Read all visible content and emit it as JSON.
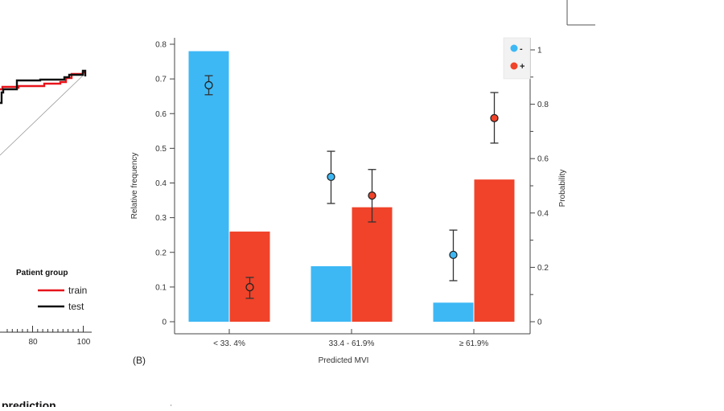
{
  "chart_data": [
    {
      "type": "bar",
      "panel": "(B)",
      "xlabel": "Predicted MVI",
      "ylabel": "Relative frequency",
      "y2label": "Probability",
      "categories": [
        "< 33. 4%",
        "33.4 - 61.9%",
        "≥ 61.9%"
      ],
      "ylim": [
        0,
        0.8
      ],
      "yticks": [
        "0",
        "0.1",
        "0.2",
        "0.3",
        "0.4",
        "0.5",
        "0.6",
        "0.7",
        "0.8"
      ],
      "y2lim": [
        0,
        1
      ],
      "y2ticks": [
        "0",
        "0.2",
        "0.4",
        "0.6",
        "0.8",
        "1"
      ],
      "series": [
        {
          "name": "-",
          "color": "#3db8f5",
          "bar_values": [
            0.78,
            0.16,
            0.055
          ],
          "point_probability": [
            0.87,
            0.533,
            0.246
          ],
          "point_error_low": [
            0.835,
            0.435,
            0.151
          ],
          "point_error_high": [
            0.905,
            0.627,
            0.337
          ],
          "point_style": "hollow"
        },
        {
          "name": "+",
          "color": "#f0432a",
          "bar_values": [
            0.26,
            0.33,
            0.41
          ],
          "point_probability": [
            0.127,
            0.464,
            0.749
          ],
          "point_error_low": [
            0.086,
            0.367,
            0.657
          ],
          "point_error_high": [
            0.163,
            0.56,
            0.843
          ],
          "point_style": "hollow-first"
        }
      ],
      "legend": {
        "entries": [
          "-",
          "+"
        ],
        "position": "top-right"
      },
      "grid": false
    },
    {
      "type": "line",
      "partial": true,
      "legend": {
        "title": "Patient group",
        "entries": [
          "train",
          "test"
        ],
        "position": "bottom-right"
      },
      "series": [
        {
          "name": "train",
          "color": "#e8141b"
        },
        {
          "name": "test",
          "color": "#111111"
        }
      ],
      "xticks": [
        "80",
        "100"
      ]
    }
  ],
  "fragments": {
    "bottom_left_text": "prediction"
  }
}
